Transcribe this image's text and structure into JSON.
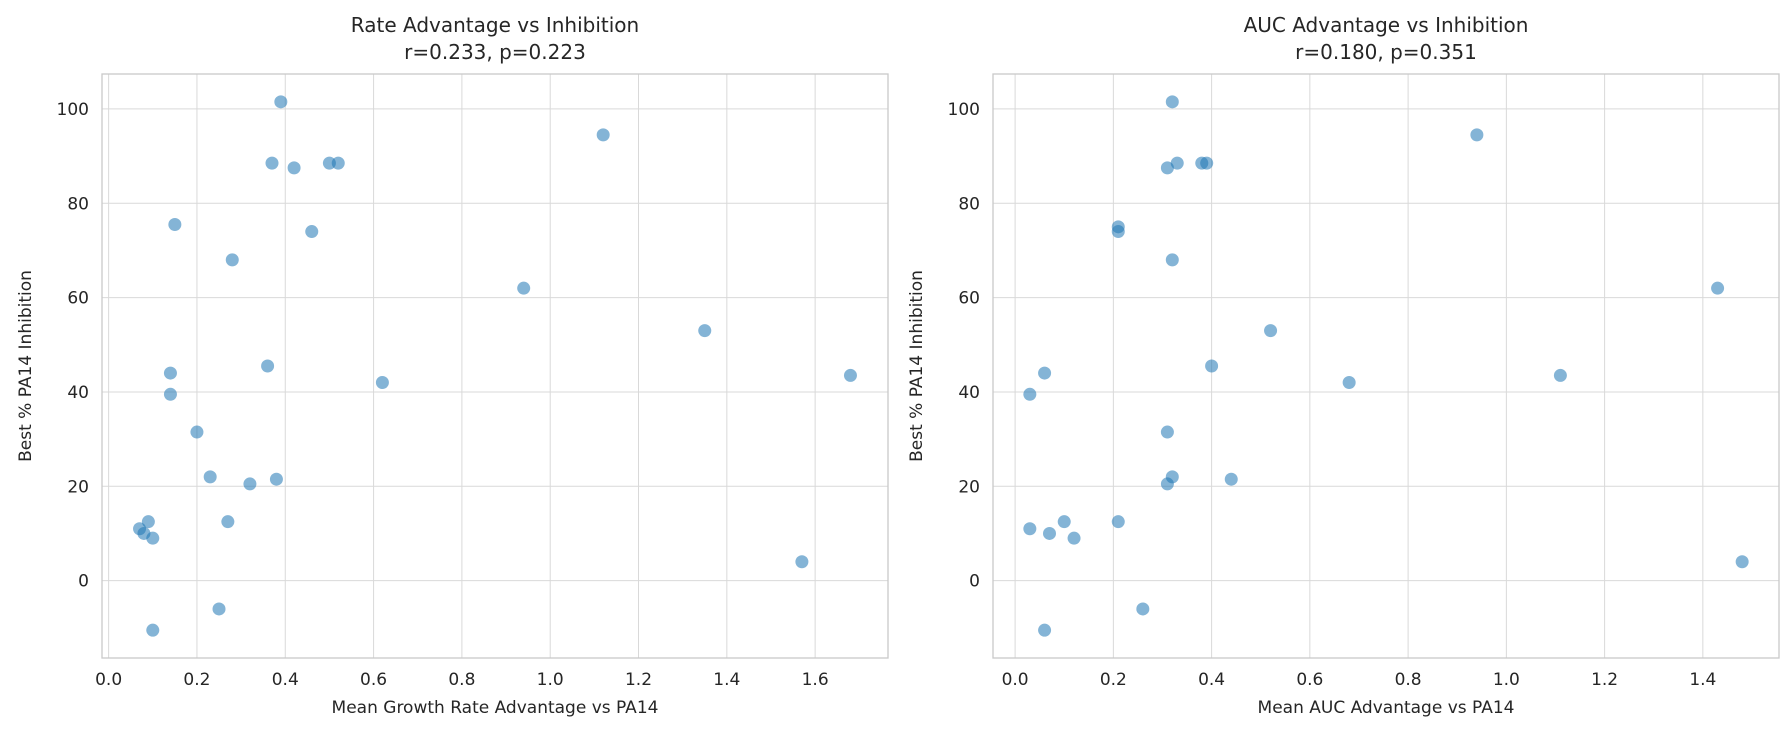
{
  "figure": {
    "background": "#ffffff",
    "text_color": "#262626"
  },
  "chart_data": [
    {
      "type": "scatter",
      "title": "Rate Advantage vs Inhibition",
      "subtitle": "r=0.233, p=0.223",
      "r": 0.233,
      "p": 0.223,
      "xlabel": "Mean Growth Rate Advantage vs PA14",
      "ylabel": "Best % PA14 Inhibition",
      "xlim": [
        -0.015,
        1.765
      ],
      "ylim": [
        -16.4,
        107.4
      ],
      "xticks": [
        0.0,
        0.2,
        0.4,
        0.6,
        0.8,
        1.0,
        1.2,
        1.4,
        1.6
      ],
      "xtick_labels": [
        "0.0",
        "0.2",
        "0.4",
        "0.6",
        "0.8",
        "1.0",
        "1.2",
        "1.4",
        "1.6"
      ],
      "yticks": [
        0,
        20,
        40,
        60,
        80,
        100
      ],
      "ytick_labels": [
        "0",
        "20",
        "40",
        "60",
        "80",
        "100"
      ],
      "grid": true,
      "legend": false,
      "grid_color": "#d9d9d9",
      "frame_color": "#c9c9c9",
      "point_color": "#1f77b4",
      "point_opacity": 0.55,
      "points": [
        [
          0.39,
          101.5
        ],
        [
          1.12,
          94.5
        ],
        [
          0.37,
          88.5
        ],
        [
          0.5,
          88.5
        ],
        [
          0.52,
          88.5
        ],
        [
          0.42,
          87.5
        ],
        [
          0.15,
          75.5
        ],
        [
          0.46,
          74.0
        ],
        [
          0.28,
          68.0
        ],
        [
          0.94,
          62.0
        ],
        [
          1.35,
          53.0
        ],
        [
          0.36,
          45.5
        ],
        [
          0.14,
          44.0
        ],
        [
          1.68,
          43.5
        ],
        [
          0.62,
          42.0
        ],
        [
          0.14,
          39.5
        ],
        [
          0.2,
          31.5
        ],
        [
          0.23,
          22.0
        ],
        [
          0.38,
          21.5
        ],
        [
          0.32,
          20.5
        ],
        [
          0.27,
          12.5
        ],
        [
          0.09,
          12.5
        ],
        [
          0.07,
          11.0
        ],
        [
          0.08,
          10.0
        ],
        [
          0.1,
          9.0
        ],
        [
          1.57,
          4.0
        ],
        [
          0.25,
          -6.0
        ],
        [
          0.1,
          -10.5
        ]
      ]
    },
    {
      "type": "scatter",
      "title": "AUC Advantage vs Inhibition",
      "subtitle": "r=0.180, p=0.351",
      "r": 0.18,
      "p": 0.351,
      "xlabel": "Mean AUC Advantage vs PA14",
      "ylabel": "Best % PA14 Inhibition",
      "xlim": [
        -0.045,
        1.555
      ],
      "ylim": [
        -16.4,
        107.4
      ],
      "xticks": [
        0.0,
        0.2,
        0.4,
        0.6,
        0.8,
        1.0,
        1.2,
        1.4
      ],
      "xtick_labels": [
        "0.0",
        "0.2",
        "0.4",
        "0.6",
        "0.8",
        "1.0",
        "1.2",
        "1.4"
      ],
      "yticks": [
        0,
        20,
        40,
        60,
        80,
        100
      ],
      "ytick_labels": [
        "0",
        "20",
        "40",
        "60",
        "80",
        "100"
      ],
      "grid": true,
      "legend": false,
      "grid_color": "#d9d9d9",
      "frame_color": "#c9c9c9",
      "point_color": "#1f77b4",
      "point_opacity": 0.55,
      "points": [
        [
          0.32,
          101.5
        ],
        [
          0.94,
          94.5
        ],
        [
          0.33,
          88.5
        ],
        [
          0.38,
          88.5
        ],
        [
          0.39,
          88.5
        ],
        [
          0.31,
          87.5
        ],
        [
          0.21,
          75.0
        ],
        [
          0.21,
          74.0
        ],
        [
          0.32,
          68.0
        ],
        [
          1.43,
          62.0
        ],
        [
          0.52,
          53.0
        ],
        [
          0.4,
          45.5
        ],
        [
          0.06,
          44.0
        ],
        [
          1.11,
          43.5
        ],
        [
          0.68,
          42.0
        ],
        [
          0.03,
          39.5
        ],
        [
          0.31,
          31.5
        ],
        [
          0.32,
          22.0
        ],
        [
          0.44,
          21.5
        ],
        [
          0.31,
          20.5
        ],
        [
          0.21,
          12.5
        ],
        [
          0.1,
          12.5
        ],
        [
          0.03,
          11.0
        ],
        [
          0.07,
          10.0
        ],
        [
          0.12,
          9.0
        ],
        [
          1.48,
          4.0
        ],
        [
          0.26,
          -6.0
        ],
        [
          0.06,
          -10.5
        ]
      ]
    }
  ]
}
